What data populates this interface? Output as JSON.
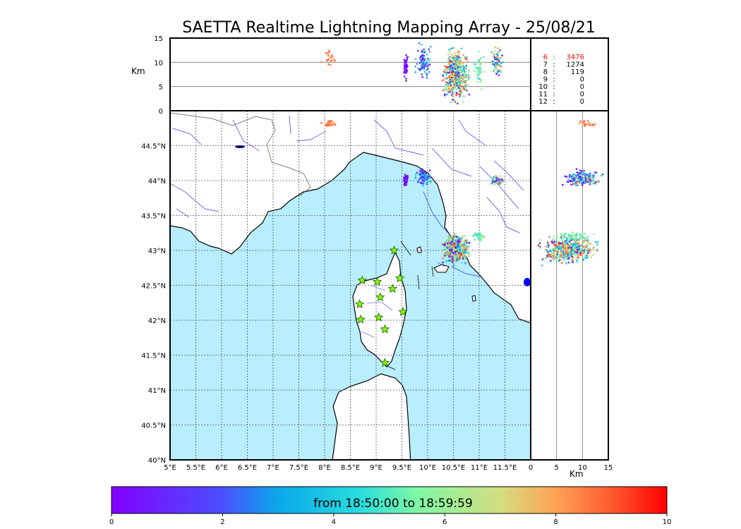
{
  "chart_data": {
    "type": "scatter",
    "title": "SAETTA Realtime Lightning Mapping Array - 25/08/21",
    "map": {
      "x_ticks": [
        "5°E",
        "5.5°E",
        "6°E",
        "6.5°E",
        "7°E",
        "7.5°E",
        "8°E",
        "8.5°E",
        "9°E",
        "9.5°E",
        "10°E",
        "10.5°E",
        "11°E",
        "11.5°E"
      ],
      "y_ticks": [
        "40°N",
        "40.5°N",
        "41°N",
        "41.5°N",
        "42°N",
        "42.5°N",
        "43°N",
        "43.5°N",
        "44°N",
        "44.5°N"
      ],
      "xlim": [
        5.0,
        12.0
      ],
      "ylim": [
        40.0,
        45.0
      ],
      "grid": true
    },
    "top_panel": {
      "ylabel": "Km",
      "y_ticks": [
        "0",
        "5",
        "10",
        "15"
      ],
      "ylim": [
        0,
        15
      ]
    },
    "right_panel": {
      "xlabel": "Km",
      "x_ticks": [
        "0",
        "5",
        "10",
        "15"
      ],
      "xlim": [
        0,
        15
      ]
    },
    "station_counts": [
      {
        "stations": "6",
        "count": "3476",
        "highlight": true
      },
      {
        "stations": "7",
        "count": "1274",
        "highlight": false
      },
      {
        "stations": "8",
        "count": "119",
        "highlight": false
      },
      {
        "stations": "9",
        "count": "0",
        "highlight": false
      },
      {
        "stations": "10",
        "count": "0",
        "highlight": false
      },
      {
        "stations": "11",
        "count": "0",
        "highlight": false
      },
      {
        "stations": "12",
        "count": "0",
        "highlight": false
      }
    ],
    "stations": [
      {
        "lon": 9.35,
        "lat": 43.0
      },
      {
        "lon": 8.73,
        "lat": 42.57
      },
      {
        "lon": 9.02,
        "lat": 42.55
      },
      {
        "lon": 9.46,
        "lat": 42.6
      },
      {
        "lon": 9.32,
        "lat": 42.45
      },
      {
        "lon": 9.08,
        "lat": 42.33
      },
      {
        "lon": 8.68,
        "lat": 42.23
      },
      {
        "lon": 9.52,
        "lat": 42.12
      },
      {
        "lon": 9.05,
        "lat": 42.04
      },
      {
        "lon": 8.7,
        "lat": 42.01
      },
      {
        "lon": 9.17,
        "lat": 41.87
      },
      {
        "lon": 9.17,
        "lat": 41.39
      }
    ],
    "clusters": [
      {
        "lon": 8.1,
        "lat": 44.82,
        "lon_spread": 0.14,
        "lat_spread": 0.04,
        "alt_mean": 10.5,
        "alt_spread": 2.0,
        "n": 22,
        "t_min": 8,
        "t_max": 9
      },
      {
        "lon": 9.57,
        "lat": 44.0,
        "lon_spread": 0.04,
        "lat_spread": 0.07,
        "alt_mean": 9.0,
        "alt_spread": 2.5,
        "n": 50,
        "t_min": 0.2,
        "t_max": 0.8
      },
      {
        "lon": 9.92,
        "lat": 44.06,
        "lon_spread": 0.12,
        "lat_spread": 0.09,
        "alt_mean": 10.0,
        "alt_spread": 3.0,
        "n": 90,
        "t_min": 0.3,
        "t_max": 5
      },
      {
        "lon": 10.55,
        "lat": 43.02,
        "lon_spread": 0.2,
        "lat_spread": 0.16,
        "alt_mean": 8.0,
        "alt_spread": 4.0,
        "n": 380,
        "t_min": 3,
        "t_max": 9.5
      },
      {
        "lon": 10.55,
        "lat": 43.02,
        "lon_spread": 0.22,
        "lat_spread": 0.18,
        "alt_mean": 6.0,
        "alt_spread": 4.0,
        "n": 160,
        "t_min": 0,
        "t_max": 10
      },
      {
        "lon": 11.0,
        "lat": 43.2,
        "lon_spread": 0.08,
        "lat_spread": 0.06,
        "alt_mean": 8.0,
        "alt_spread": 3.0,
        "n": 50,
        "t_min": 4,
        "t_max": 7
      },
      {
        "lon": 11.35,
        "lat": 44.0,
        "lon_spread": 0.1,
        "lat_spread": 0.05,
        "alt_mean": 10.0,
        "alt_spread": 2.5,
        "n": 80,
        "t_min": 0.3,
        "t_max": 8.5
      }
    ],
    "colorbar": {
      "label": "from 18:50:00 to 18:59:59",
      "ticks": [
        "0",
        "2",
        "4",
        "6",
        "8",
        "10"
      ],
      "vmin": 0,
      "vmax": 10
    }
  }
}
